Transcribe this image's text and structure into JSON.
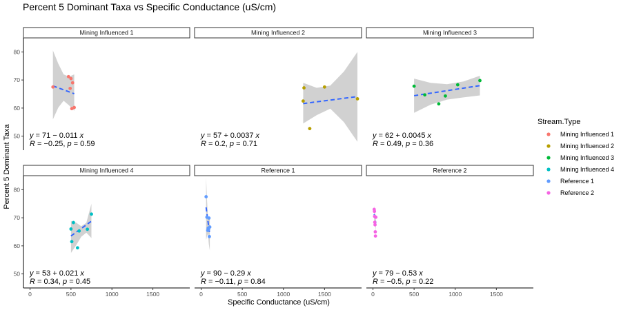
{
  "chart_data": {
    "type": "scatter",
    "title": "Percent 5 Dominant Taxa vs Specific Conductance (uS/cm)",
    "xlabel": "Specific Conductance (uS/cm)",
    "ylabel": "Percent 5 Dominant Taxa",
    "xlim": [
      -80,
      1950
    ],
    "ylim": [
      45,
      85
    ],
    "x_ticks": [
      0,
      500,
      1000,
      1500
    ],
    "x_tick_labels": [
      "0",
      "500",
      "1000",
      "1500"
    ],
    "y_ticks": [
      50,
      60,
      70,
      80
    ],
    "y_tick_labels": [
      "50",
      "60",
      "70",
      "80"
    ],
    "grid": false,
    "legend": {
      "title": "Stream.Type",
      "position": "right",
      "entries": [
        "Mining Influenced 1",
        "Mining Influenced 2",
        "Mining Influenced 3",
        "Mining Influenced 4",
        "Reference 1",
        "Reference 2"
      ]
    },
    "fit": "linear regression with confidence band",
    "panels": [
      {
        "name": "Mining Influenced 1",
        "color": "#F8766D",
        "points": [
          [
            280,
            67.5
          ],
          [
            470,
            71.2
          ],
          [
            490,
            67.0
          ],
          [
            500,
            70.5
          ],
          [
            510,
            59.8
          ],
          [
            520,
            69.0
          ],
          [
            540,
            60.2
          ]
        ],
        "fit": {
          "x": [
            280,
            540
          ],
          "y": [
            67.9,
            65.1
          ]
        },
        "band": {
          "upper": [
            80.5,
            75.8,
            72.0,
            71.2,
            72.0
          ],
          "lower": [
            56.0,
            60.2,
            62.6,
            61.0,
            59.0
          ]
        },
        "eq_lhs": "y",
        "eq_rhs": " = 71 − 0.011 ",
        "eq_x": "x",
        "stat_r": "R",
        "stat_rval": " = −0.25, ",
        "stat_p": "p",
        "stat_pval": " = 0.59"
      },
      {
        "name": "Mining Influenced 2",
        "color": "#B79F00",
        "points": [
          [
            1240,
            62.5
          ],
          [
            1250,
            67.2
          ],
          [
            1320,
            52.7
          ],
          [
            1500,
            67.5
          ],
          [
            1900,
            63.3
          ]
        ],
        "fit": {
          "x": [
            1240,
            1900
          ],
          "y": [
            61.6,
            64.1
          ]
        },
        "band": {
          "upper": [
            69.0,
            67.2,
            68.0,
            73.0,
            80.0
          ],
          "lower": [
            54.5,
            57.5,
            59.8,
            55.0,
            48.0
          ]
        },
        "eq_lhs": "y",
        "eq_rhs": " = 57 + 0.0037 ",
        "eq_x": "x",
        "stat_r": "R",
        "stat_rval": " = 0.2, ",
        "stat_p": "p",
        "stat_pval": " = 0.71"
      },
      {
        "name": "Mining Influenced 3",
        "color": "#00BA38",
        "points": [
          [
            500,
            67.8
          ],
          [
            630,
            64.7
          ],
          [
            800,
            61.5
          ],
          [
            880,
            64.3
          ],
          [
            1030,
            68.3
          ],
          [
            1300,
            69.8
          ]
        ],
        "fit": {
          "x": [
            500,
            1300
          ],
          "y": [
            64.4,
            68.0
          ]
        },
        "band": {
          "upper": [
            70.5,
            69.0,
            68.5,
            69.5,
            71.5
          ],
          "lower": [
            58.3,
            61.2,
            63.0,
            63.8,
            64.5
          ]
        },
        "eq_lhs": "y",
        "eq_rhs": " = 62 + 0.0045 ",
        "eq_x": "x",
        "stat_r": "R",
        "stat_rval": " = 0.49, ",
        "stat_p": "p",
        "stat_pval": " = 0.36"
      },
      {
        "name": "Mining Influenced 4",
        "color": "#00BFC4",
        "points": [
          [
            500,
            66.0
          ],
          [
            510,
            61.5
          ],
          [
            530,
            68.3
          ],
          [
            580,
            59.3
          ],
          [
            600,
            65.3
          ],
          [
            700,
            65.9
          ],
          [
            750,
            71.3
          ]
        ],
        "fit": {
          "x": [
            500,
            750
          ],
          "y": [
            63.5,
            68.8
          ]
        },
        "band": {
          "upper": [
            68.8,
            68.3,
            67.0,
            68.2,
            75.0
          ],
          "lower": [
            57.5,
            60.2,
            63.2,
            64.7,
            62.8
          ]
        },
        "eq_lhs": "y",
        "eq_rhs": " = 53 + 0.021 ",
        "eq_x": "x",
        "stat_r": "R",
        "stat_rval": " = 0.34, ",
        "stat_p": "p",
        "stat_pval": " = 0.45"
      },
      {
        "name": "Reference 1",
        "color": "#619CFF",
        "points": [
          [
            60,
            77.5
          ],
          [
            70,
            70.2
          ],
          [
            80,
            65.5
          ],
          [
            85,
            66.3
          ],
          [
            90,
            65.8
          ],
          [
            95,
            69.9
          ],
          [
            100,
            63.3
          ],
          [
            105,
            66.7
          ]
        ],
        "fit": {
          "x": [
            60,
            105
          ],
          "y": [
            73.7,
            64.0
          ]
        },
        "band": {
          "upper": [
            84.5,
            76.5,
            70.0,
            69.6,
            69.5
          ],
          "lower": [
            62.0,
            63.5,
            64.3,
            60.5,
            58.3
          ]
        },
        "eq_lhs": "y",
        "eq_rhs": " = 90 − 0.29 ",
        "eq_x": "x",
        "stat_r": "R",
        "stat_rval": " = −0.11, ",
        "stat_p": "p",
        "stat_pval": " = 0.84"
      },
      {
        "name": "Reference 2",
        "color": "#F564E3",
        "points": [
          [
            15,
            73.0
          ],
          [
            18,
            72.3
          ],
          [
            20,
            70.5
          ],
          [
            22,
            68.4
          ],
          [
            25,
            67.5
          ],
          [
            28,
            65.0
          ],
          [
            30,
            63.5
          ],
          [
            35,
            70.2
          ]
        ],
        "fit": {
          "x": [
            15,
            35
          ],
          "y": [
            71.3,
            68.0
          ]
        },
        "band": {
          "upper": [
            74.5,
            72.5,
            70.8,
            70.5,
            71.5
          ],
          "lower": [
            68.0,
            68.2,
            68.5,
            66.6,
            64.5
          ]
        },
        "eq_lhs": "y",
        "eq_rhs": " = 79 − 0.53 ",
        "eq_x": "x",
        "stat_r": "R",
        "stat_rval": " = −0.5, ",
        "stat_p": "p",
        "stat_pval": " = 0.22"
      }
    ]
  }
}
